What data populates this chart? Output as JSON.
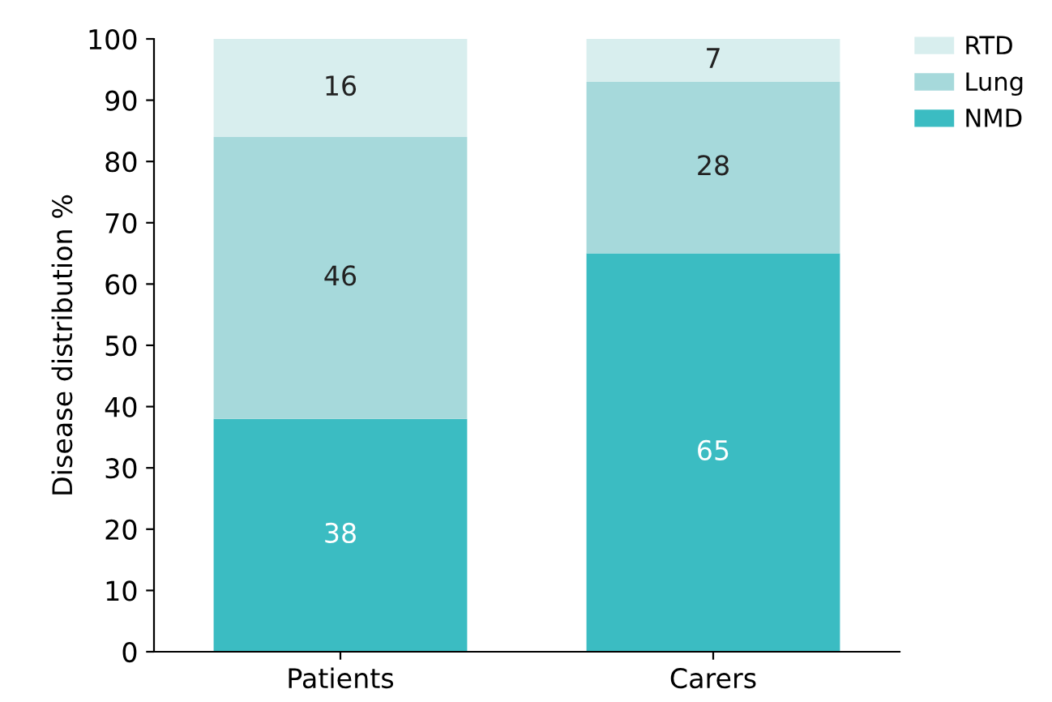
{
  "chart_data": {
    "type": "bar",
    "stacked": true,
    "ylabel": "Disease distribution %",
    "categories": [
      "Patients",
      "Carers"
    ],
    "series": [
      {
        "name": "NMD",
        "color": "#3bbcc2",
        "values": [
          38,
          65
        ]
      },
      {
        "name": "Lung",
        "color": "#a6d9db",
        "values": [
          46,
          28
        ]
      },
      {
        "name": "RTD",
        "color": "#d8eeee",
        "values": [
          16,
          7
        ]
      }
    ],
    "ylim": [
      0,
      100
    ],
    "yticks": [
      0,
      10,
      20,
      30,
      40,
      50,
      60,
      70,
      80,
      90,
      100
    ],
    "data_labels": true,
    "legend": "top right",
    "grid": false
  }
}
